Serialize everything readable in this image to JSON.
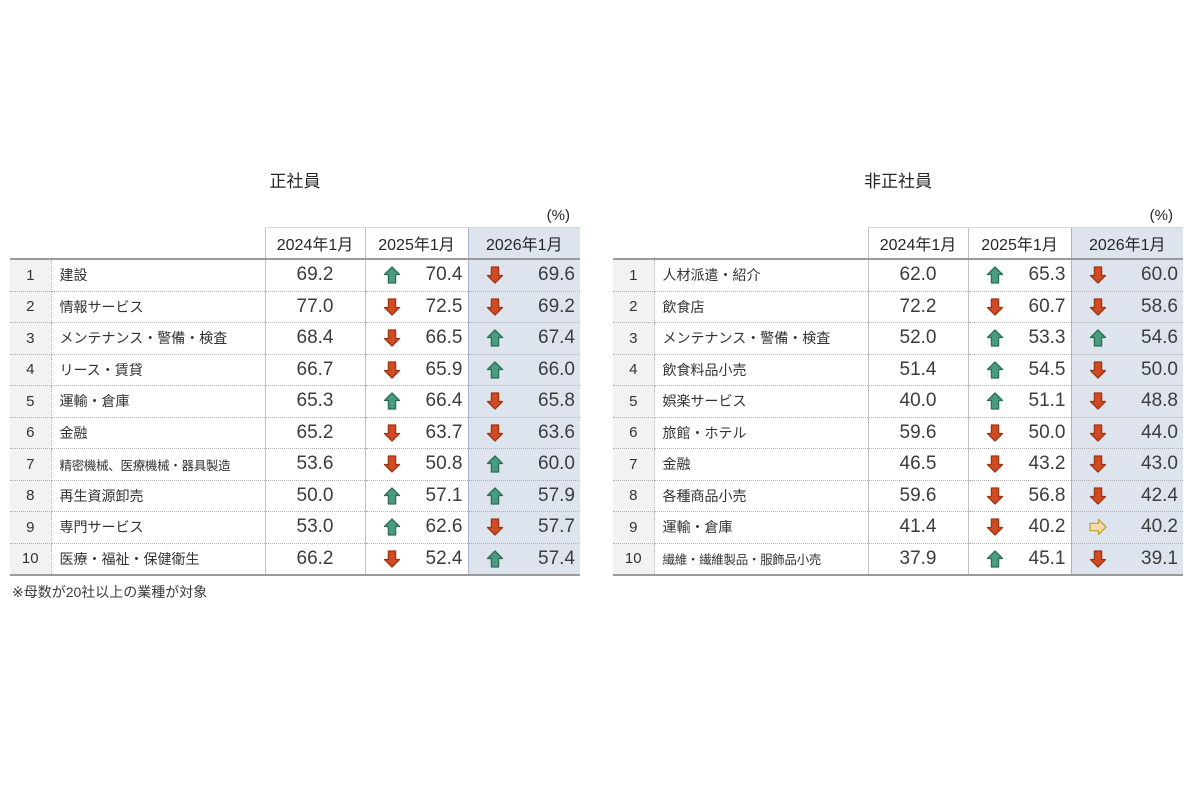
{
  "unit_label": "(%)",
  "colors": {
    "highlight_column_bg": "#dde4ee",
    "rank_column_bg": "#f2f2f2",
    "up_fill": "#4a9c7e",
    "up_stroke": "#2c6e54",
    "down_fill": "#d04b24",
    "down_stroke": "#9c3512",
    "flat_fill": "#f1dda5",
    "flat_stroke": "#c8a23e"
  },
  "chart_data": [
    {
      "type": "table",
      "title": "正社員",
      "columns": [
        "2024年1月",
        "2025年1月",
        "2026年1月"
      ],
      "footnote": "※母数が20社以上の業種が対象",
      "rows": [
        {
          "rank": "1",
          "industry": "建設",
          "y2024": "69.2",
          "trend2025": "up",
          "y2025": "70.4",
          "trend2026": "down",
          "y2026": "69.6"
        },
        {
          "rank": "2",
          "industry": "情報サービス",
          "y2024": "77.0",
          "trend2025": "down",
          "y2025": "72.5",
          "trend2026": "down",
          "y2026": "69.2"
        },
        {
          "rank": "3",
          "industry": "メンテナンス・警備・検査",
          "y2024": "68.4",
          "trend2025": "down",
          "y2025": "66.5",
          "trend2026": "up",
          "y2026": "67.4"
        },
        {
          "rank": "4",
          "industry": "リース・賃貸",
          "y2024": "66.7",
          "trend2025": "down",
          "y2025": "65.9",
          "trend2026": "up",
          "y2026": "66.0"
        },
        {
          "rank": "5",
          "industry": "運輸・倉庫",
          "y2024": "65.3",
          "trend2025": "up",
          "y2025": "66.4",
          "trend2026": "down",
          "y2026": "65.8"
        },
        {
          "rank": "6",
          "industry": "金融",
          "y2024": "65.2",
          "trend2025": "down",
          "y2025": "63.7",
          "trend2026": "down",
          "y2026": "63.6"
        },
        {
          "rank": "7",
          "industry": "精密機械、医療機械・器具製造",
          "y2024": "53.6",
          "trend2025": "down",
          "y2025": "50.8",
          "trend2026": "up",
          "y2026": "60.0"
        },
        {
          "rank": "8",
          "industry": "再生資源卸売",
          "y2024": "50.0",
          "trend2025": "up",
          "y2025": "57.1",
          "trend2026": "up",
          "y2026": "57.9"
        },
        {
          "rank": "9",
          "industry": "専門サービス",
          "y2024": "53.0",
          "trend2025": "up",
          "y2025": "62.6",
          "trend2026": "down",
          "y2026": "57.7"
        },
        {
          "rank": "10",
          "industry": "医療・福祉・保健衛生",
          "y2024": "66.2",
          "trend2025": "down",
          "y2025": "52.4",
          "trend2026": "up",
          "y2026": "57.4"
        }
      ]
    },
    {
      "type": "table",
      "title": "非正社員",
      "columns": [
        "2024年1月",
        "2025年1月",
        "2026年1月"
      ],
      "footnote": "",
      "rows": [
        {
          "rank": "1",
          "industry": "人材派遣・紹介",
          "y2024": "62.0",
          "trend2025": "up",
          "y2025": "65.3",
          "trend2026": "down",
          "y2026": "60.0"
        },
        {
          "rank": "2",
          "industry": "飲食店",
          "y2024": "72.2",
          "trend2025": "down",
          "y2025": "60.7",
          "trend2026": "down",
          "y2026": "58.6"
        },
        {
          "rank": "3",
          "industry": "メンテナンス・警備・検査",
          "y2024": "52.0",
          "trend2025": "up",
          "y2025": "53.3",
          "trend2026": "up",
          "y2026": "54.6"
        },
        {
          "rank": "4",
          "industry": "飲食料品小売",
          "y2024": "51.4",
          "trend2025": "up",
          "y2025": "54.5",
          "trend2026": "down",
          "y2026": "50.0"
        },
        {
          "rank": "5",
          "industry": "娯楽サービス",
          "y2024": "40.0",
          "trend2025": "up",
          "y2025": "51.1",
          "trend2026": "down",
          "y2026": "48.8"
        },
        {
          "rank": "6",
          "industry": "旅館・ホテル",
          "y2024": "59.6",
          "trend2025": "down",
          "y2025": "50.0",
          "trend2026": "down",
          "y2026": "44.0"
        },
        {
          "rank": "7",
          "industry": "金融",
          "y2024": "46.5",
          "trend2025": "down",
          "y2025": "43.2",
          "trend2026": "down",
          "y2026": "43.0"
        },
        {
          "rank": "8",
          "industry": "各種商品小売",
          "y2024": "59.6",
          "trend2025": "down",
          "y2025": "56.8",
          "trend2026": "down",
          "y2026": "42.4"
        },
        {
          "rank": "9",
          "industry": "運輸・倉庫",
          "y2024": "41.4",
          "trend2025": "down",
          "y2025": "40.2",
          "trend2026": "flat",
          "y2026": "40.2"
        },
        {
          "rank": "10",
          "industry": "繊維・繊維製品・服飾品小売",
          "y2024": "37.9",
          "trend2025": "up",
          "y2025": "45.1",
          "trend2026": "down",
          "y2026": "39.1"
        }
      ]
    }
  ]
}
